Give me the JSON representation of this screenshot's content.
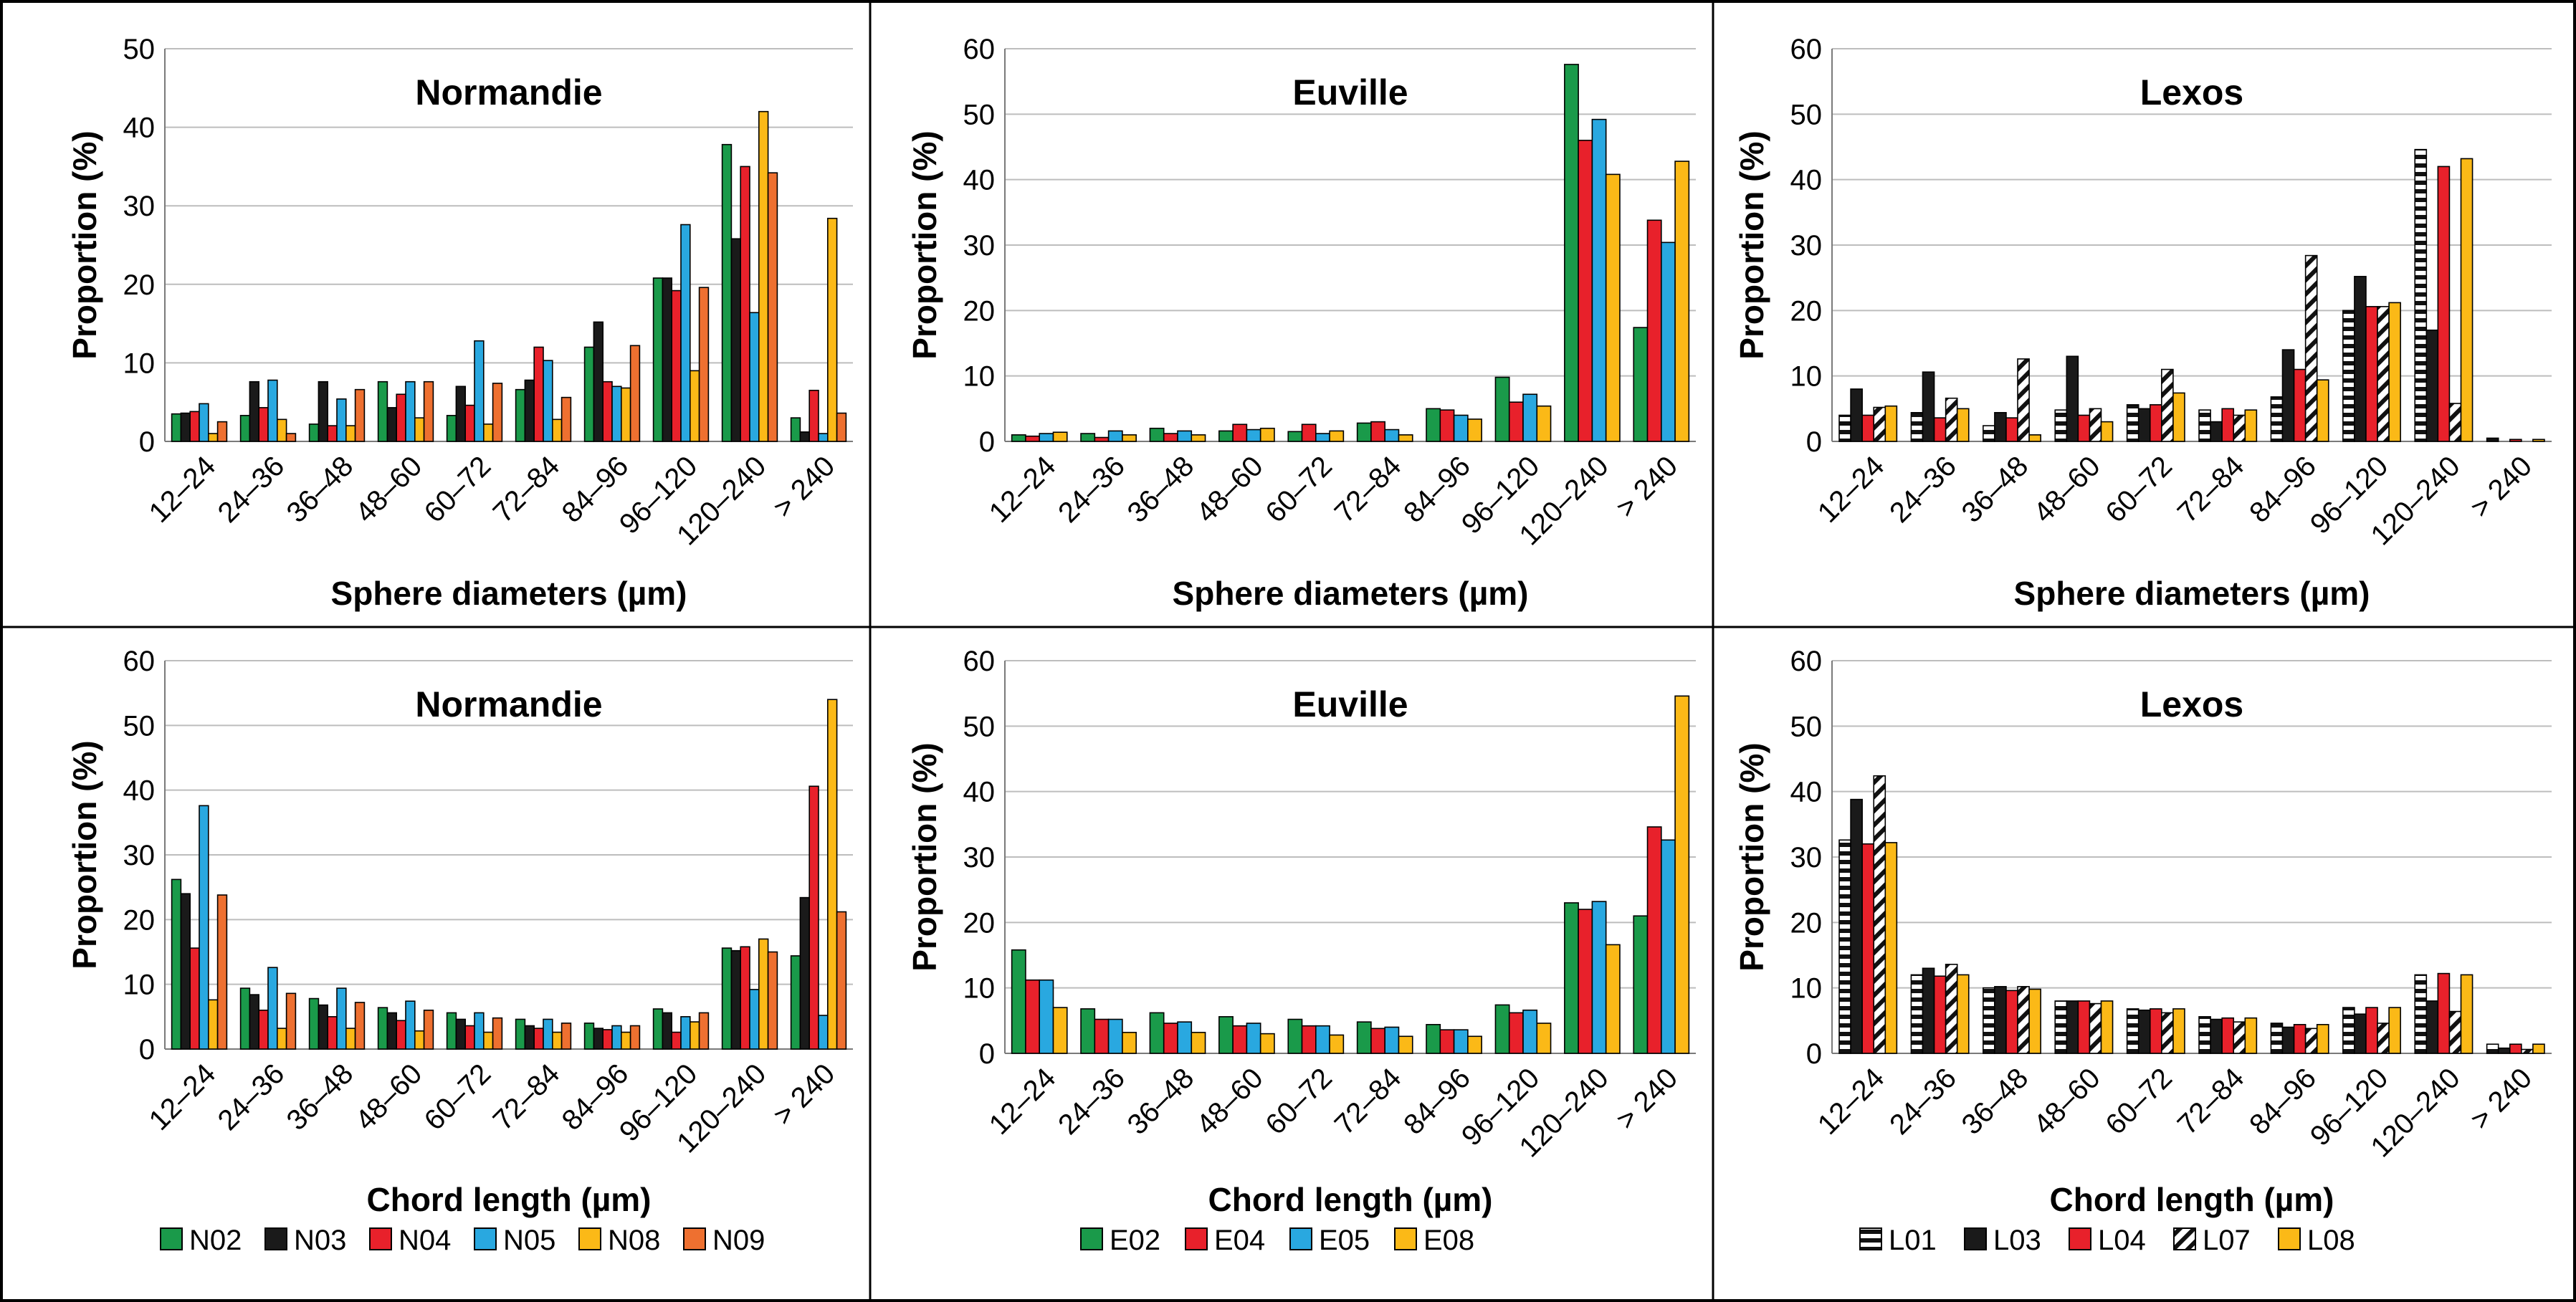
{
  "chart_data": [
    {
      "type": "bar",
      "title": "Normandie",
      "xlabel": "Sphere diameters (µm)",
      "ylabel": "Proportion (%)",
      "ylim": [
        0,
        50
      ],
      "yticks": [
        0,
        10,
        20,
        30,
        40,
        50
      ],
      "categories": [
        "12–24",
        "24–36",
        "36–48",
        "48–60",
        "60–72",
        "72–84",
        "84–96",
        "96–120",
        "120–240",
        "> 240"
      ],
      "series": [
        {
          "name": "N02",
          "values": [
            3.5,
            3.3,
            2.2,
            7.6,
            3.3,
            6.6,
            12.0,
            20.8,
            37.8,
            3.0
          ]
        },
        {
          "name": "N03",
          "values": [
            3.6,
            7.6,
            7.6,
            4.3,
            7.0,
            7.8,
            15.2,
            20.8,
            25.8,
            1.2
          ]
        },
        {
          "name": "N04",
          "values": [
            3.8,
            4.3,
            2.0,
            6.0,
            4.6,
            12.0,
            7.6,
            19.2,
            35.0,
            6.5
          ]
        },
        {
          "name": "N05",
          "values": [
            4.8,
            7.8,
            5.4,
            7.6,
            12.8,
            10.3,
            7.0,
            27.6,
            16.4,
            1.0
          ]
        },
        {
          "name": "N08",
          "values": [
            1.0,
            2.8,
            2.0,
            3.0,
            2.2,
            2.8,
            6.8,
            9.0,
            42.0,
            28.4
          ]
        },
        {
          "name": "N09",
          "values": [
            2.5,
            1.0,
            6.6,
            7.6,
            7.4,
            5.6,
            12.2,
            19.6,
            34.2,
            3.6
          ]
        }
      ]
    },
    {
      "type": "bar",
      "title": "Euville",
      "xlabel": "Sphere diameters (µm)",
      "ylabel": "Proportion (%)",
      "ylim": [
        0,
        60
      ],
      "yticks": [
        0,
        10,
        20,
        30,
        40,
        50,
        60
      ],
      "categories": [
        "12–24",
        "24–36",
        "36–48",
        "48–60",
        "60–72",
        "72–84",
        "84–96",
        "96–120",
        "120–240",
        "> 240"
      ],
      "series": [
        {
          "name": "E02",
          "values": [
            1.0,
            1.2,
            2.0,
            1.6,
            1.5,
            2.8,
            5.0,
            9.8,
            57.6,
            17.4
          ]
        },
        {
          "name": "E04",
          "values": [
            0.8,
            0.6,
            1.2,
            2.6,
            2.6,
            3.0,
            4.8,
            6.0,
            46.0,
            33.8
          ]
        },
        {
          "name": "E05",
          "values": [
            1.2,
            1.6,
            1.6,
            1.8,
            1.2,
            1.8,
            4.0,
            7.2,
            49.2,
            30.4
          ]
        },
        {
          "name": "E08",
          "values": [
            1.4,
            1.0,
            1.0,
            2.0,
            1.6,
            1.0,
            3.4,
            5.4,
            40.8,
            42.8
          ]
        }
      ]
    },
    {
      "type": "bar",
      "title": "Lexos",
      "xlabel": "Sphere diameters (µm)",
      "ylabel": "Proportion (%)",
      "ylim": [
        0,
        60
      ],
      "yticks": [
        0,
        10,
        20,
        30,
        40,
        50,
        60
      ],
      "categories": [
        "12–24",
        "24–36",
        "36–48",
        "48–60",
        "60–72",
        "72–84",
        "84–96",
        "96–120",
        "120–240",
        "> 240"
      ],
      "series": [
        {
          "name": "L01",
          "values": [
            4.0,
            4.4,
            2.4,
            4.8,
            5.6,
            4.8,
            6.8,
            20.0,
            44.6,
            0.5
          ]
        },
        {
          "name": "L03",
          "values": [
            8.0,
            10.6,
            4.4,
            13.0,
            5.0,
            3.0,
            14.0,
            25.2,
            17.0,
            0.0
          ]
        },
        {
          "name": "L04",
          "values": [
            4.0,
            3.6,
            3.6,
            4.0,
            5.6,
            5.0,
            11.0,
            20.6,
            42.0,
            0.3
          ]
        },
        {
          "name": "L07",
          "values": [
            5.2,
            6.6,
            12.6,
            5.0,
            11.0,
            4.0,
            28.4,
            20.6,
            5.8,
            0.0
          ]
        },
        {
          "name": "L08",
          "values": [
            5.4,
            5.0,
            1.0,
            3.0,
            7.4,
            4.8,
            9.4,
            21.2,
            43.2,
            0.3
          ]
        }
      ]
    },
    {
      "type": "bar",
      "title": "Normandie",
      "xlabel": "Chord length (µm)",
      "ylabel": "Proportion (%)",
      "ylim": [
        0,
        60
      ],
      "yticks": [
        0,
        10,
        20,
        30,
        40,
        50,
        60
      ],
      "categories": [
        "12–24",
        "24–36",
        "36–48",
        "48–60",
        "60–72",
        "72–84",
        "84–96",
        "96–120",
        "120–240",
        "> 240"
      ],
      "series": [
        {
          "name": "N02",
          "values": [
            26.2,
            9.4,
            7.8,
            6.4,
            5.6,
            4.6,
            4.0,
            6.2,
            15.6,
            14.4
          ]
        },
        {
          "name": "N03",
          "values": [
            24.0,
            8.4,
            6.8,
            5.6,
            4.6,
            3.6,
            3.2,
            5.6,
            15.2,
            23.4
          ]
        },
        {
          "name": "N04",
          "values": [
            15.6,
            6.0,
            5.0,
            4.4,
            3.6,
            3.2,
            3.0,
            2.6,
            15.8,
            40.6
          ]
        },
        {
          "name": "N05",
          "values": [
            37.6,
            12.6,
            9.4,
            7.4,
            5.6,
            4.6,
            3.6,
            5.0,
            9.2,
            5.2
          ]
        },
        {
          "name": "N08",
          "values": [
            7.6,
            3.2,
            3.2,
            2.8,
            2.6,
            2.6,
            2.6,
            4.2,
            17.0,
            54.0
          ]
        },
        {
          "name": "N09",
          "values": [
            23.8,
            8.6,
            7.2,
            6.0,
            4.8,
            4.0,
            3.6,
            5.6,
            15.0,
            21.2
          ]
        }
      ]
    },
    {
      "type": "bar",
      "title": "Euville",
      "xlabel": "Chord length (µm)",
      "ylabel": "Proportion (%)",
      "ylim": [
        0,
        60
      ],
      "yticks": [
        0,
        10,
        20,
        30,
        40,
        50,
        60
      ],
      "categories": [
        "12–24",
        "24–36",
        "36–48",
        "48–60",
        "60–72",
        "72–84",
        "84–96",
        "96–120",
        "120–240",
        "> 240"
      ],
      "series": [
        {
          "name": "E02",
          "values": [
            15.8,
            6.8,
            6.2,
            5.6,
            5.2,
            4.8,
            4.4,
            7.4,
            23.0,
            21.0
          ]
        },
        {
          "name": "E04",
          "values": [
            11.2,
            5.2,
            4.6,
            4.2,
            4.2,
            3.8,
            3.6,
            6.2,
            22.0,
            34.6
          ]
        },
        {
          "name": "E05",
          "values": [
            11.2,
            5.2,
            4.8,
            4.6,
            4.2,
            4.0,
            3.6,
            6.6,
            23.2,
            32.6
          ]
        },
        {
          "name": "E08",
          "values": [
            7.0,
            3.2,
            3.2,
            3.0,
            2.8,
            2.6,
            2.6,
            4.6,
            16.6,
            54.6
          ]
        }
      ]
    },
    {
      "type": "bar",
      "title": "Lexos",
      "xlabel": "Chord length (µm)",
      "ylabel": "Proportion (%)",
      "ylim": [
        0,
        60
      ],
      "yticks": [
        0,
        10,
        20,
        30,
        40,
        50,
        60
      ],
      "categories": [
        "12–24",
        "24–36",
        "36–48",
        "48–60",
        "60–72",
        "72–84",
        "84–96",
        "96–120",
        "120–240",
        "> 240"
      ],
      "series": [
        {
          "name": "L01",
          "values": [
            32.6,
            12.0,
            10.0,
            8.0,
            6.8,
            5.6,
            4.6,
            7.0,
            12.0,
            1.4
          ]
        },
        {
          "name": "L03",
          "values": [
            38.8,
            13.0,
            10.2,
            8.0,
            6.6,
            5.2,
            4.0,
            6.0,
            8.0,
            0.8
          ]
        },
        {
          "name": "L04",
          "values": [
            32.0,
            11.8,
            9.6,
            8.0,
            6.8,
            5.4,
            4.4,
            7.0,
            12.2,
            1.4
          ]
        },
        {
          "name": "L07",
          "values": [
            42.4,
            13.6,
            10.2,
            7.6,
            6.2,
            4.8,
            3.8,
            4.6,
            6.4,
            0.6
          ]
        },
        {
          "name": "L08",
          "values": [
            32.2,
            12.0,
            9.8,
            8.0,
            6.8,
            5.4,
            4.4,
            7.0,
            12.0,
            1.4
          ]
        }
      ]
    }
  ],
  "legends": [
    {
      "items": [
        "N02",
        "N03",
        "N04",
        "N05",
        "N08",
        "N09"
      ]
    },
    {
      "items": [
        "E02",
        "E04",
        "E05",
        "E08"
      ]
    },
    {
      "items": [
        "L01",
        "L03",
        "L04",
        "L07",
        "L08"
      ]
    }
  ],
  "colors": {
    "N02": "#1a9a4a",
    "N03": "#1a1a1a",
    "N04": "#e8212b",
    "N05": "#29a8e0",
    "N08": "#fbb917",
    "N09": "#ee7030",
    "E02": "#1a9a4a",
    "E04": "#e8212b",
    "E05": "#29a8e0",
    "E08": "#fbb917",
    "L01": "pattern-hstripe",
    "L03": "#1a1a1a",
    "L04": "#e8212b",
    "L07": "pattern-diag",
    "L08": "#fbb917",
    "grid": "#bdbdbd",
    "border": "#000000"
  }
}
